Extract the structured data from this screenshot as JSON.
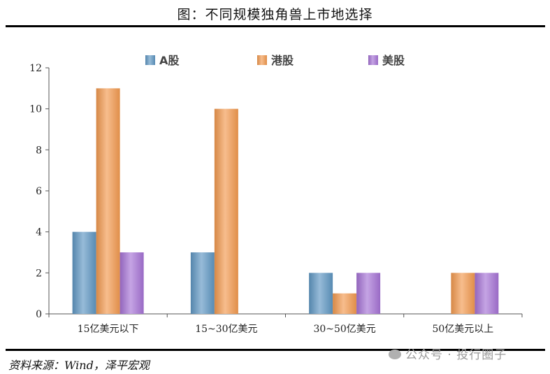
{
  "figure_title": "图：不同规模独角兽上市地选择",
  "source": "资料来源：Wind，泽平宏观",
  "watermark": "公众号 · 投行圈子",
  "chart_data": {
    "type": "bar",
    "title": "",
    "xlabel": "",
    "ylabel": "",
    "categories": [
      "15亿美元以下",
      "15~30亿美元",
      "30~50亿美元",
      "50亿美元以上"
    ],
    "series": [
      {
        "name": "A股",
        "values": [
          4,
          3,
          2,
          0
        ],
        "color": "#5f97c3"
      },
      {
        "name": "港股",
        "values": [
          11,
          10,
          1,
          2
        ],
        "color": "#f39a4f"
      },
      {
        "name": "美股",
        "values": [
          3,
          0,
          2,
          2
        ],
        "color": "#a673d6"
      }
    ],
    "ylim": [
      0,
      12
    ],
    "yticks": [
      0,
      2,
      4,
      6,
      8,
      10,
      12
    ],
    "grid": false,
    "legend_position": "top"
  }
}
